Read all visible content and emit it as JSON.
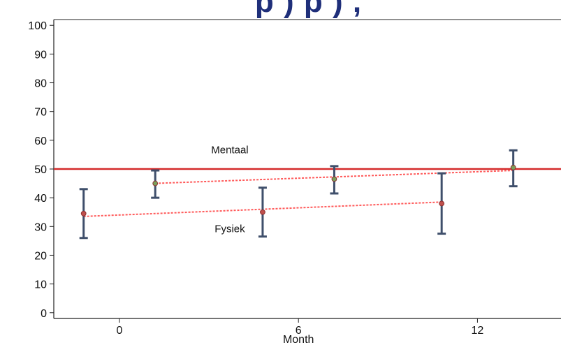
{
  "slide": {
    "title_fragment": "p ) p ) ,"
  },
  "chart_data": {
    "type": "scatter",
    "title": "",
    "xlabel": "Month",
    "ylabel": "",
    "xlim": [
      -2.2,
      14.8
    ],
    "ylim": [
      -2,
      102
    ],
    "x_ticks": [
      0,
      6,
      12
    ],
    "y_ticks": [
      0,
      10,
      20,
      30,
      40,
      50,
      60,
      70,
      80,
      90,
      100
    ],
    "grid": false,
    "reference_line": {
      "y": 50,
      "color": "#d42a2a"
    },
    "series": [
      {
        "name": "Mentaal",
        "color": "#7aa05a",
        "points": [
          {
            "x": 1.2,
            "y": 45,
            "low": 40,
            "high": 49.5
          },
          {
            "x": 7.2,
            "y": 46.5,
            "low": 41.5,
            "high": 51
          },
          {
            "x": 13.2,
            "y": 50.5,
            "low": 44,
            "high": 56.5
          }
        ],
        "trend": [
          {
            "x": 1.2,
            "y": 45
          },
          {
            "x": 13.2,
            "y": 49.5
          }
        ]
      },
      {
        "name": "Fysiek",
        "color": "#c0504d",
        "points": [
          {
            "x": -1.2,
            "y": 34.5,
            "low": 26,
            "high": 43
          },
          {
            "x": 4.8,
            "y": 35,
            "low": 26.5,
            "high": 43.5
          },
          {
            "x": 10.8,
            "y": 38,
            "low": 27.5,
            "high": 48.5
          }
        ],
        "trend": [
          {
            "x": -1.2,
            "y": 33.5
          },
          {
            "x": 10.8,
            "y": 38.5
          }
        ]
      }
    ],
    "annotations": [
      {
        "text": "Mentaal",
        "x": 3.7,
        "y": 55.5
      },
      {
        "text": "Fysiek",
        "x": 3.7,
        "y": 28
      }
    ],
    "colors": {
      "error_bar": "#3f4f6b",
      "trend_line": "#ff5a5a",
      "axis": "#222222"
    }
  }
}
